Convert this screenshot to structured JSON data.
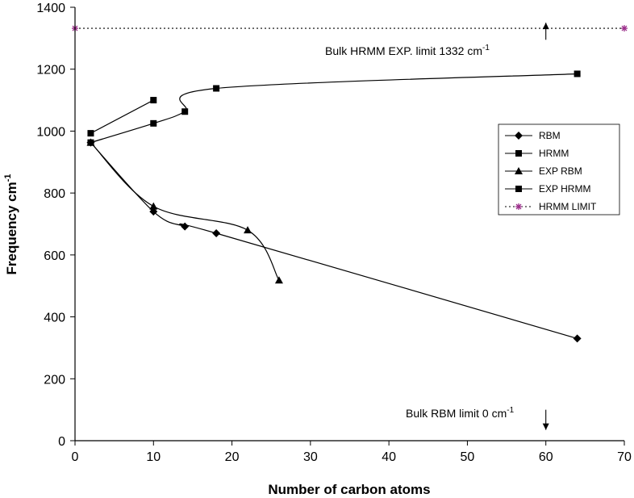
{
  "chart_data": {
    "type": "line",
    "title": "",
    "xlabel": "Number of carbon atoms",
    "ylabel": "Frequency cm",
    "ylabel_sup": "-1",
    "xlim": [
      0,
      70
    ],
    "ylim": [
      0,
      1400
    ],
    "xticks": [
      0,
      10,
      20,
      30,
      40,
      50,
      60,
      70
    ],
    "yticks": [
      0,
      200,
      400,
      600,
      800,
      1000,
      1200,
      1400
    ],
    "grid": false,
    "legend_position": "right",
    "series": [
      {
        "name": "RBM",
        "marker": "diamond",
        "line": "solid",
        "smooth": true,
        "x": [
          2,
          10,
          14,
          18,
          64
        ],
        "y": [
          963,
          740,
          692,
          670,
          330
        ]
      },
      {
        "name": "HRMM",
        "marker": "square",
        "line": "solid",
        "smooth": true,
        "x": [
          2,
          10,
          14,
          18,
          64
        ],
        "y": [
          963,
          1025,
          1063,
          1138,
          1185
        ]
      },
      {
        "name": "EXP RBM",
        "marker": "triangle",
        "line": "solid",
        "smooth": true,
        "x": [
          2,
          10,
          22,
          26
        ],
        "y": [
          963,
          757,
          680,
          518
        ]
      },
      {
        "name": "EXP HRMM",
        "marker": "square",
        "line": "solid",
        "smooth": true,
        "x": [
          2,
          10
        ],
        "y": [
          993,
          1100
        ]
      },
      {
        "name": "HRMM LIMIT",
        "marker": "asterisk",
        "line": "dotted",
        "color": "#9b2d8a",
        "x": [
          0,
          70
        ],
        "y": [
          1332,
          1332
        ]
      }
    ],
    "annotations": [
      {
        "text": "Bulk HRMM EXP. limit 1332 cm",
        "sup": "-1",
        "arrow": "up",
        "arrow_x": 60,
        "arrow_y": [
          1295,
          1350
        ]
      },
      {
        "text": "Bulk RBM limit 0 cm",
        "sup": "-1",
        "arrow": "down",
        "arrow_x": 60,
        "arrow_y": [
          100,
          35
        ]
      }
    ]
  }
}
